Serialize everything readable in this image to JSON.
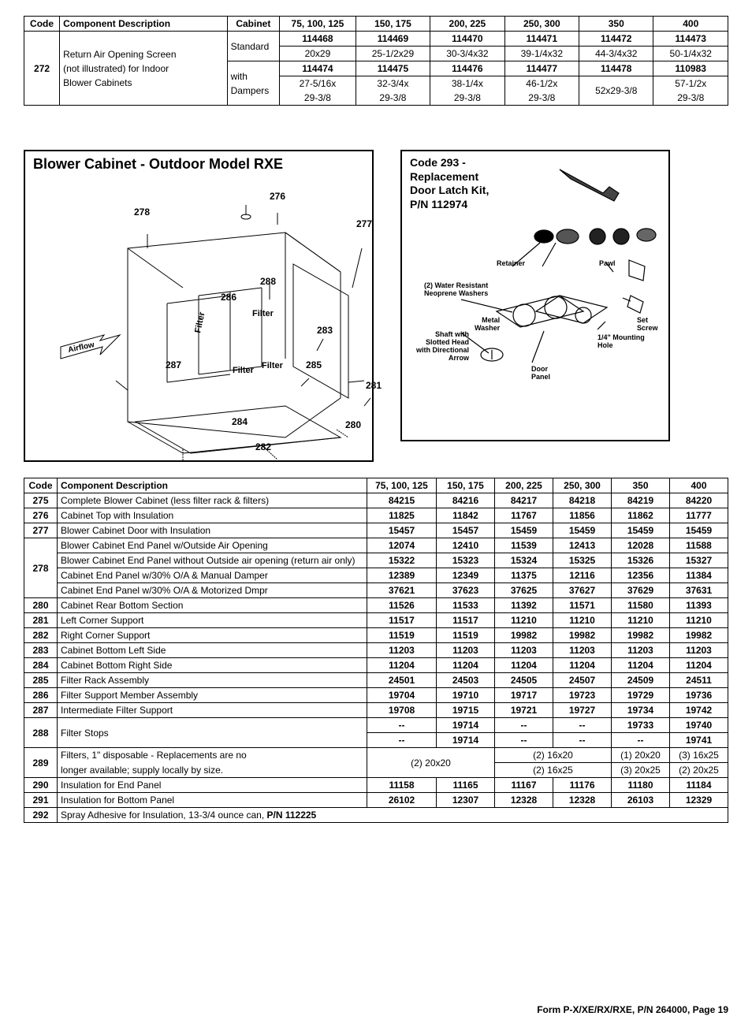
{
  "top_table": {
    "headers": [
      "Code",
      "Component Description",
      "Cabinet",
      "75, 100, 125",
      "150, 175",
      "200, 225",
      "250, 300",
      "350",
      "400"
    ],
    "code": "272",
    "desc_lines": [
      "Return Air Opening Screen",
      "(not illustrated) for Indoor",
      "Blower Cabinets"
    ],
    "cab_std": "Standard",
    "cab_wd": "with Dampers",
    "r1": [
      "114468",
      "114469",
      "114470",
      "114471",
      "114472",
      "114473"
    ],
    "r2": [
      "20x29",
      "25-1/2x29",
      "30-3/4x32",
      "39-1/4x32",
      "44-3/4x32",
      "50-1/4x32"
    ],
    "r3": [
      "114474",
      "114475",
      "114476",
      "114477",
      "114478",
      "110983"
    ],
    "r4a": [
      "27-5/16x",
      "32-3/4x",
      "38-1/4x",
      "46-1/2x"
    ],
    "r4a_merge": "52x29-3/8",
    "r4a_last": "57-1/2x",
    "r4b": [
      "29-3/8",
      "29-3/8",
      "29-3/8",
      "29-3/8"
    ],
    "r4b_last": "29-3/8"
  },
  "diagram1": {
    "title": "Blower Cabinet - Outdoor Model RXE",
    "airflow": "Airflow",
    "filter": "Filter",
    "c276": "276",
    "c277": "277",
    "c278": "278",
    "c280": "280",
    "c281": "281",
    "c282": "282",
    "c283": "283",
    "c284": "284",
    "c285": "285",
    "c286": "286",
    "c287": "287",
    "c288": "288"
  },
  "diagram2": {
    "title_l1": "Code 293 -",
    "title_l2": "Replacement",
    "title_l3": "Door Latch Kit,",
    "title_l4": "P/N 112974",
    "retainer": "Retainer",
    "pawl": "Pawl",
    "washers_l1": "(2) Water Resistant",
    "washers_l2": "Neoprene Washers",
    "metal_l1": "Metal",
    "metal_l2": "Washer",
    "shaft_l1": "Shaft with",
    "shaft_l2": "Slotted Head",
    "shaft_l3": "with Directional",
    "shaft_l4": "Arrow",
    "set_l1": "Set",
    "set_l2": "Screw",
    "mount_l1": "1/4\" Mounting",
    "mount_l2": "Hole",
    "door_l1": "Door",
    "door_l2": "Panel"
  },
  "main_table": {
    "headers": [
      "Code",
      "Component Description",
      "75, 100, 125",
      "150, 175",
      "200, 225",
      "250, 300",
      "350",
      "400"
    ],
    "rows": [
      {
        "code": "275",
        "desc": "Complete Blower Cabinet (less filter rack & filters)",
        "v": [
          "84215",
          "84216",
          "84217",
          "84218",
          "84219",
          "84220"
        ]
      },
      {
        "code": "276",
        "desc": "Cabinet Top with Insulation",
        "v": [
          "11825",
          "11842",
          "11767",
          "11856",
          "11862",
          "11777"
        ]
      },
      {
        "code": "277",
        "desc": "Blower Cabinet Door with Insulation",
        "v": [
          "15457",
          "15457",
          "15459",
          "15459",
          "15459",
          "15459"
        ]
      }
    ],
    "r278_label": "278",
    "r278_rows": [
      {
        "desc": "Blower Cabinet End Panel w/Outside Air Opening",
        "v": [
          "12074",
          "12410",
          "11539",
          "12413",
          "12028",
          "11588"
        ]
      },
      {
        "desc": "Blower Cabinet End Panel without Outside air opening (return air only)",
        "v": [
          "15322",
          "15323",
          "15324",
          "15325",
          "15326",
          "15327"
        ]
      },
      {
        "desc": "Cabinet End Panel w/30% O/A & Manual Damper",
        "v": [
          "12389",
          "12349",
          "11375",
          "12116",
          "12356",
          "11384"
        ]
      },
      {
        "desc": "Cabinet End Panel w/30% O/A & Motorized Dmpr",
        "v": [
          "37621",
          "37623",
          "37625",
          "37627",
          "37629",
          "37631"
        ]
      }
    ],
    "rows2": [
      {
        "code": "280",
        "desc": "Cabinet Rear Bottom Section",
        "v": [
          "11526",
          "11533",
          "11392",
          "11571",
          "11580",
          "11393"
        ]
      },
      {
        "code": "281",
        "desc": "Left Corner Support",
        "v": [
          "11517",
          "11517",
          "11210",
          "11210",
          "11210",
          "11210"
        ]
      },
      {
        "code": "282",
        "desc": "Right Corner Support",
        "v": [
          "11519",
          "11519",
          "19982",
          "19982",
          "19982",
          "19982"
        ]
      },
      {
        "code": "283",
        "desc": "Cabinet Bottom Left Side",
        "v": [
          "11203",
          "11203",
          "11203",
          "11203",
          "11203",
          "11203"
        ]
      },
      {
        "code": "284",
        "desc": "Cabinet Bottom Right Side",
        "v": [
          "11204",
          "11204",
          "11204",
          "11204",
          "11204",
          "11204"
        ]
      },
      {
        "code": "285",
        "desc": "Filter Rack Assembly",
        "v": [
          "24501",
          "24503",
          "24505",
          "24507",
          "24509",
          "24511"
        ]
      },
      {
        "code": "286",
        "desc": "Filter Support Member Assembly",
        "v": [
          "19704",
          "19710",
          "19717",
          "19723",
          "19729",
          "19736"
        ]
      },
      {
        "code": "287",
        "desc": "Intermediate Filter Support",
        "v": [
          "19708",
          "19715",
          "19721",
          "19727",
          "19734",
          "19742"
        ]
      }
    ],
    "r288_label": "288",
    "r288_desc": "Filter Stops",
    "r288a": [
      "--",
      "19714",
      "--",
      "--",
      "19733",
      "19740"
    ],
    "r288b": [
      "--",
      "19714",
      "--",
      "--",
      "--",
      "19741"
    ],
    "r289_label": "289",
    "r289_desc_l1": "Filters, 1\" disposable - Replacements are no",
    "r289_desc_l2": "longer available; supply locally by size.",
    "r289_c1": "(2) 20x20",
    "r289_c2": "(2) 16x20",
    "r289_c3": "(1) 20x20",
    "r289_c4": "(3) 16x25",
    "r289_c5": "(2) 16x25",
    "r289_c6": "(3) 20x25",
    "r289_c7": "(2) 20x25",
    "rows3": [
      {
        "code": "290",
        "desc": "Insulation for End Panel",
        "v": [
          "11158",
          "11165",
          "11167",
          "11176",
          "11180",
          "11184"
        ]
      },
      {
        "code": "291",
        "desc": "Insulation for Bottom Panel",
        "v": [
          "26102",
          "12307",
          "12328",
          "12328",
          "26103",
          "12329"
        ]
      }
    ],
    "r292_label": "292",
    "r292_desc_a": "Spray Adhesive for Insulation, 13-3/4 ounce can, ",
    "r292_desc_b": "P/N 112225"
  },
  "footer": "Form P-X/XE/RX/RXE, P/N 264000, Page 19"
}
